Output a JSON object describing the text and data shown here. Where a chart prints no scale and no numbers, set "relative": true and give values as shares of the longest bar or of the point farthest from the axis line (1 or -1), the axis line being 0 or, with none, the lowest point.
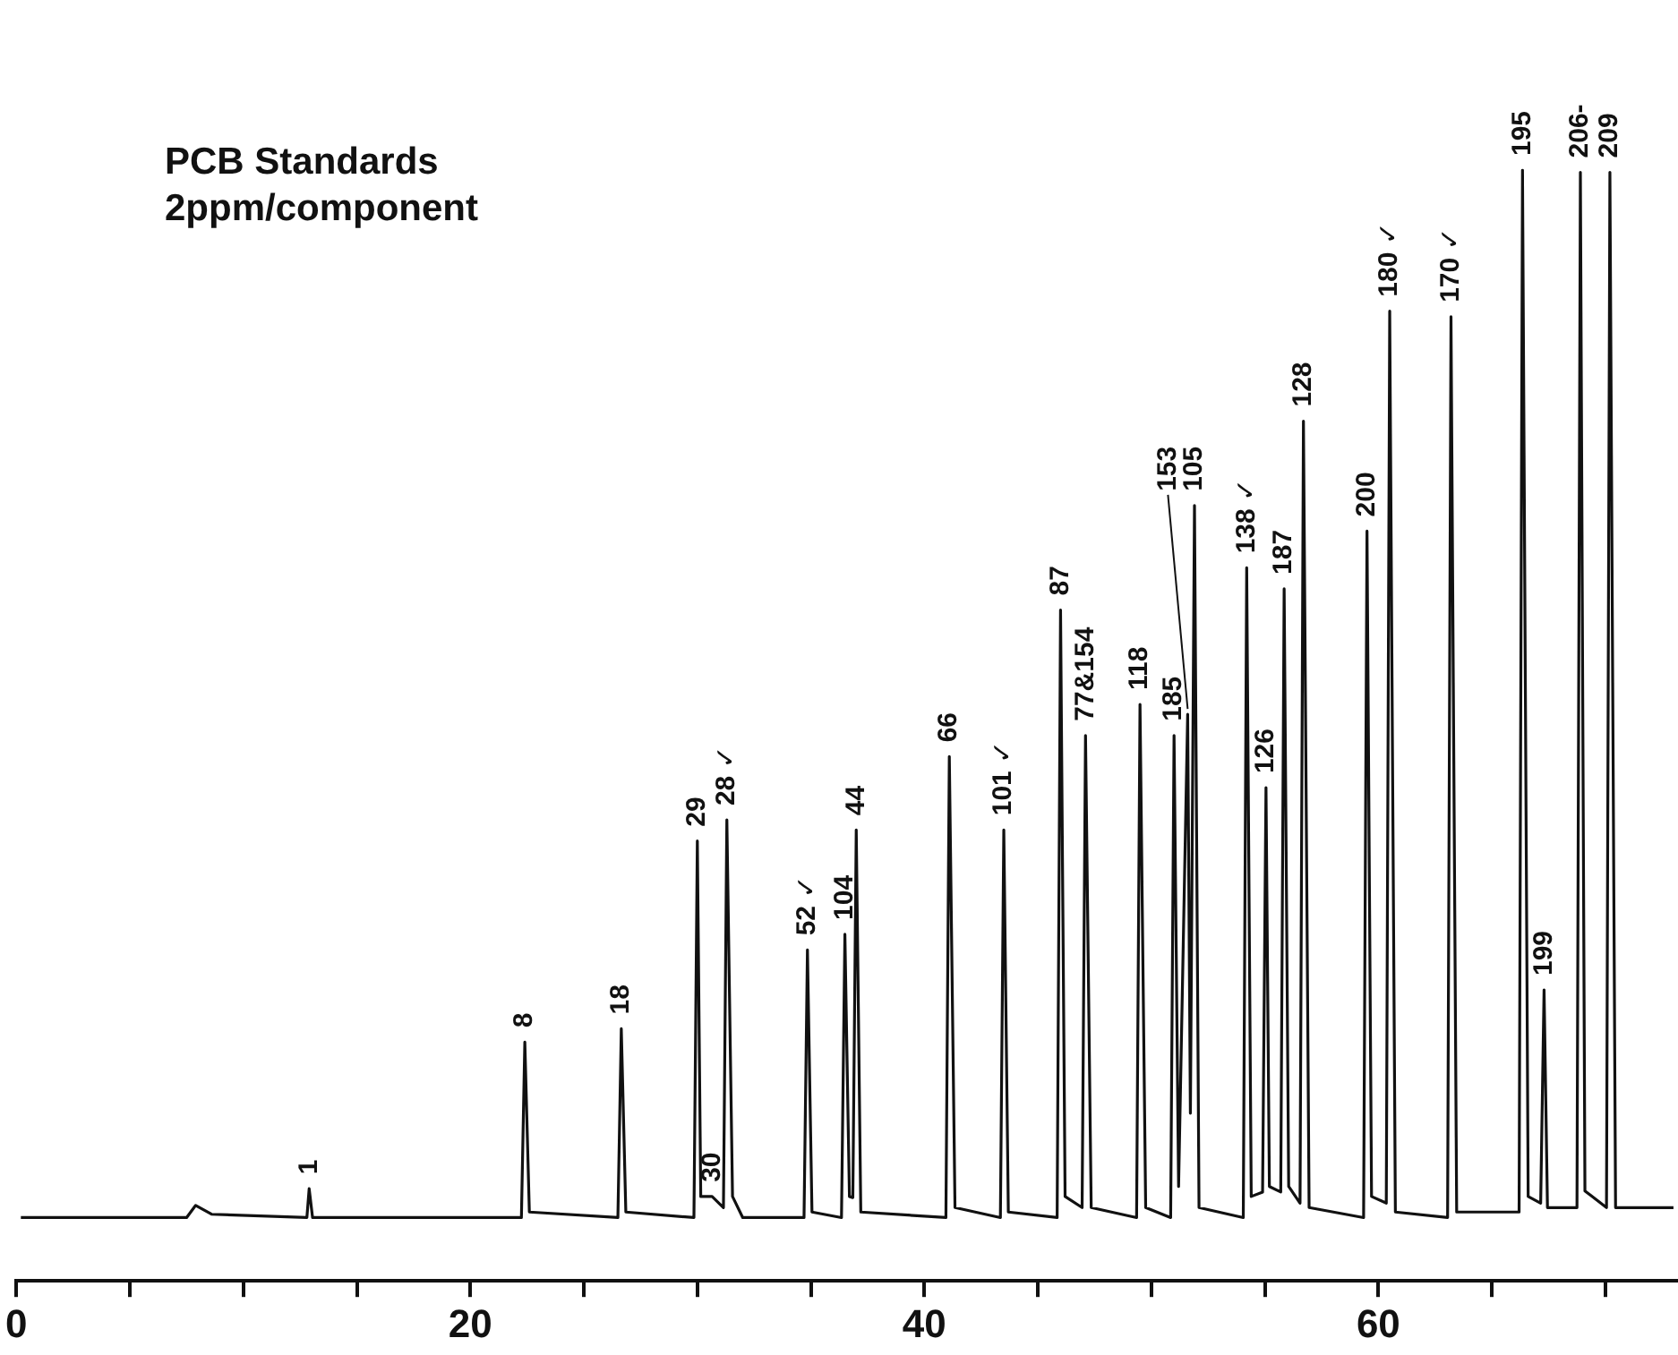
{
  "chart_data": {
    "type": "line",
    "title": "PCB Standards",
    "subtitle": "2ppm/component",
    "relative": true,
    "color": "#111111",
    "marker": "none",
    "xlim": [
      0,
      73.2
    ],
    "xticks": [
      0,
      {
        "value": 5,
        "label": null
      },
      {
        "value": 10,
        "label": null
      },
      {
        "value": 15,
        "label": null
      },
      20,
      {
        "value": 25,
        "label": null
      },
      {
        "value": 30,
        "label": null
      },
      {
        "value": 35,
        "label": null
      },
      40,
      {
        "value": 45,
        "label": null
      },
      {
        "value": 50,
        "label": null
      },
      {
        "value": 55,
        "label": null
      },
      60,
      {
        "value": 65,
        "label": null
      },
      {
        "value": 70,
        "label": null
      }
    ],
    "x": [
      0.2,
      7.5,
      7.9,
      8.6,
      12.8,
      12.9,
      13.05,
      22.25,
      22.4,
      22.6,
      26.5,
      26.65,
      26.85,
      29.85,
      30.0,
      30.15,
      30.65,
      31.15,
      31.3,
      31.55,
      32.0,
      34.7,
      34.85,
      35.05,
      36.35,
      36.5,
      36.7,
      36.85,
      37.0,
      37.2,
      40.95,
      41.1,
      41.35,
      43.35,
      43.5,
      43.7,
      45.85,
      46.0,
      46.2,
      46.95,
      47.1,
      47.35,
      49.35,
      49.5,
      49.75,
      50.85,
      51.0,
      51.2,
      51.6,
      51.72,
      51.9,
      52.1,
      54.05,
      54.2,
      54.4,
      54.9,
      55.05,
      55.2,
      55.7,
      55.85,
      56.05,
      56.55,
      56.7,
      56.95,
      59.35,
      59.5,
      59.7,
      60.35,
      60.5,
      60.75,
      63.05,
      63.2,
      63.45,
      66.2,
      66.35,
      66.6,
      67.15,
      67.3,
      67.45,
      68.75,
      68.9,
      69.1,
      70.05,
      70.2,
      70.45,
      73.0
    ],
    "values": [
      0.057,
      0.057,
      0.068,
      0.06,
      0.057,
      0.083,
      0.057,
      0.057,
      0.215,
      0.062,
      0.057,
      0.227,
      0.062,
      0.057,
      0.396,
      0.076,
      0.076,
      0.066,
      0.415,
      0.076,
      0.057,
      0.057,
      0.298,
      0.062,
      0.057,
      0.312,
      0.076,
      0.075,
      0.406,
      0.062,
      0.057,
      0.472,
      0.066,
      0.057,
      0.406,
      0.062,
      0.057,
      0.604,
      0.076,
      0.066,
      0.491,
      0.066,
      0.057,
      0.519,
      0.066,
      0.057,
      0.491,
      0.085,
      0.51,
      0.151,
      0.698,
      0.066,
      0.057,
      0.642,
      0.076,
      0.08,
      0.444,
      0.085,
      0.08,
      0.623,
      0.085,
      0.07,
      0.774,
      0.066,
      0.057,
      0.675,
      0.076,
      0.07,
      0.873,
      0.062,
      0.057,
      0.868,
      0.062,
      0.062,
      1.0,
      0.076,
      0.07,
      0.262,
      0.066,
      0.066,
      0.998,
      0.081,
      0.066,
      0.998,
      0.066,
      0.066
    ],
    "annotations": [
      {
        "text": "1",
        "x": 12.9,
        "y": 0.083
      },
      {
        "text": "8",
        "x": 22.4,
        "y": 0.215
      },
      {
        "text": "18",
        "x": 26.65,
        "y": 0.227
      },
      {
        "text": "29",
        "x": 30.0,
        "y": 0.396
      },
      {
        "text": "30",
        "x": 30.65,
        "y": 0.076
      },
      {
        "text": "28 ✓",
        "x": 31.3,
        "y": 0.415
      },
      {
        "text": "52 ✓",
        "x": 34.85,
        "y": 0.298
      },
      {
        "text": "104",
        "x": 36.5,
        "y": 0.312
      },
      {
        "text": "44",
        "x": 37.0,
        "y": 0.406
      },
      {
        "text": "66",
        "x": 41.1,
        "y": 0.472
      },
      {
        "text": "101 ✓",
        "x": 43.5,
        "y": 0.406
      },
      {
        "text": "87",
        "x": 46.0,
        "y": 0.604
      },
      {
        "text": "77&154",
        "x": 47.1,
        "y": 0.491
      },
      {
        "text": "118",
        "x": 49.5,
        "y": 0.519
      },
      {
        "text": "185",
        "x": 51.0,
        "y": 0.491
      },
      {
        "text": "153",
        "x": 51.6,
        "y": 0.51
      },
      {
        "text": "105",
        "x": 51.9,
        "y": 0.698
      },
      {
        "text": "138 ✓",
        "x": 54.2,
        "y": 0.642
      },
      {
        "text": "126",
        "x": 55.05,
        "y": 0.444
      },
      {
        "text": "187",
        "x": 55.85,
        "y": 0.623
      },
      {
        "text": "128",
        "x": 56.7,
        "y": 0.774
      },
      {
        "text": "200",
        "x": 59.5,
        "y": 0.675
      },
      {
        "text": "180 ✓",
        "x": 60.5,
        "y": 0.873
      },
      {
        "text": "170 ✓",
        "x": 63.2,
        "y": 0.868
      },
      {
        "text": "195",
        "x": 66.35,
        "y": 1.0
      },
      {
        "text": "199",
        "x": 67.3,
        "y": 0.262
      },
      {
        "text": "206-",
        "x": 68.9,
        "y": 0.998
      },
      {
        "text": "209",
        "x": 70.2,
        "y": 0.998
      }
    ]
  }
}
